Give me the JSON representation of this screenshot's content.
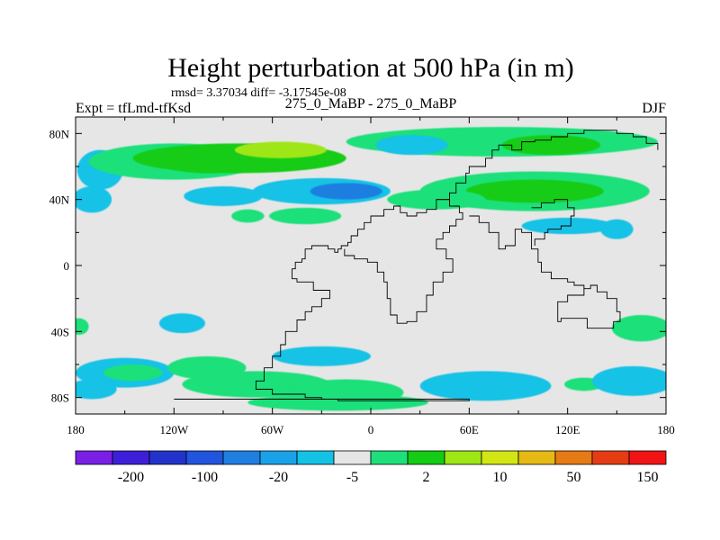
{
  "chart_data": {
    "type": "heatmap",
    "title": "Height perturbation at 500 hPa (in m)",
    "subtitle": "rmsd= 3.37034 diff= -3.17545e-08",
    "left_label": "Expt = tfLmd-tfKsd",
    "center_label": "275_0_MaBP - 275_0_MaBP",
    "right_label": "DJF",
    "x_range": [
      -180,
      180
    ],
    "y_range": [
      -90,
      90
    ],
    "x_ticks": [
      {
        "value": -180,
        "label": "180"
      },
      {
        "value": -120,
        "label": "120W"
      },
      {
        "value": -60,
        "label": "60W"
      },
      {
        "value": 0,
        "label": "0"
      },
      {
        "value": 60,
        "label": "60E"
      },
      {
        "value": 120,
        "label": "120E"
      },
      {
        "value": 180,
        "label": "180"
      }
    ],
    "y_ticks": [
      {
        "value": 80,
        "label": "80N"
      },
      {
        "value": 40,
        "label": "40N"
      },
      {
        "value": 0,
        "label": "0"
      },
      {
        "value": -40,
        "label": "40S"
      },
      {
        "value": -80,
        "label": "80S"
      }
    ],
    "colorbar": {
      "colors": [
        "#7a1fe6",
        "#3d1fd9",
        "#2233cc",
        "#2255dd",
        "#1f7fe0",
        "#1aa2e8",
        "#14c2e6",
        "#e6e6e6",
        "#1ee07a",
        "#14cc14",
        "#9ee614",
        "#d2e614",
        "#e6b914",
        "#e67a14",
        "#e63c14",
        "#f01414"
      ],
      "labels": [
        {
          "between": 1,
          "text": "-200"
        },
        {
          "between": 3,
          "text": "-100"
        },
        {
          "between": 5,
          "text": "-20"
        },
        {
          "between": 7,
          "text": "-5"
        },
        {
          "between": 9,
          "text": "2"
        },
        {
          "between": 11,
          "text": "10"
        },
        {
          "between": 13,
          "text": "50"
        },
        {
          "between": 15,
          "text": "150"
        }
      ]
    },
    "fields": [
      {
        "lon": -165,
        "lat": 58,
        "rlon": 14,
        "rlat": 12,
        "level": 6
      },
      {
        "lon": -120,
        "lat": 63,
        "rlon": 52,
        "rlat": 11,
        "level": 8
      },
      {
        "lon": -100,
        "lat": 63,
        "rlon": 28,
        "rlat": 7,
        "level": 9
      },
      {
        "lon": -80,
        "lat": 65,
        "rlon": 65,
        "rlat": 9,
        "level": 9
      },
      {
        "lon": -55,
        "lat": 70,
        "rlon": 28,
        "rlat": 5,
        "level": 10
      },
      {
        "lon": -30,
        "lat": 45,
        "rlon": 42,
        "rlat": 8,
        "level": 6
      },
      {
        "lon": -15,
        "lat": 45,
        "rlon": 22,
        "rlat": 5,
        "level": 4
      },
      {
        "lon": -90,
        "lat": 42,
        "rlon": 24,
        "rlat": 6,
        "level": 6
      },
      {
        "lon": -75,
        "lat": 30,
        "rlon": 10,
        "rlat": 4,
        "level": 8
      },
      {
        "lon": -40,
        "lat": 30,
        "rlon": 22,
        "rlat": 5,
        "level": 8
      },
      {
        "lon": 80,
        "lat": 75,
        "rlon": 95,
        "rlat": 9,
        "level": 8
      },
      {
        "lon": 110,
        "lat": 73,
        "rlon": 30,
        "rlat": 6,
        "level": 9
      },
      {
        "lon": 25,
        "lat": 73,
        "rlon": 22,
        "rlat": 6,
        "level": 6
      },
      {
        "lon": 100,
        "lat": 45,
        "rlon": 70,
        "rlat": 12,
        "level": 8
      },
      {
        "lon": 100,
        "lat": 45,
        "rlon": 42,
        "rlat": 7,
        "level": 9
      },
      {
        "lon": 40,
        "lat": 40,
        "rlon": 30,
        "rlat": 6,
        "level": 8
      },
      {
        "lon": 120,
        "lat": 24,
        "rlon": 28,
        "rlat": 5,
        "level": 6
      },
      {
        "lon": 150,
        "lat": 22,
        "rlon": 10,
        "rlat": 6,
        "level": 6
      },
      {
        "lon": -170,
        "lat": 40,
        "rlon": 12,
        "rlat": 8,
        "level": 6
      },
      {
        "lon": -115,
        "lat": -35,
        "rlon": 14,
        "rlat": 6,
        "level": 6
      },
      {
        "lon": -178,
        "lat": -37,
        "rlon": 6,
        "rlat": 5,
        "level": 8
      },
      {
        "lon": -150,
        "lat": -65,
        "rlon": 30,
        "rlat": 9,
        "level": 6
      },
      {
        "lon": -100,
        "lat": -62,
        "rlon": 24,
        "rlat": 7,
        "level": 8
      },
      {
        "lon": -145,
        "lat": -65,
        "rlon": 18,
        "rlat": 5,
        "level": 8
      },
      {
        "lon": -70,
        "lat": -72,
        "rlon": 45,
        "rlat": 8,
        "level": 8
      },
      {
        "lon": -30,
        "lat": -55,
        "rlon": 30,
        "rlat": 6,
        "level": 6
      },
      {
        "lon": -15,
        "lat": -77,
        "rlon": 35,
        "rlat": 8,
        "level": 8
      },
      {
        "lon": -20,
        "lat": -83,
        "rlon": 55,
        "rlat": 5,
        "level": 8
      },
      {
        "lon": 70,
        "lat": -73,
        "rlon": 40,
        "rlat": 9,
        "level": 6
      },
      {
        "lon": 130,
        "lat": -72,
        "rlon": 12,
        "rlat": 4,
        "level": 8
      },
      {
        "lon": 165,
        "lat": -38,
        "rlon": 18,
        "rlat": 8,
        "level": 8
      },
      {
        "lon": 160,
        "lat": -70,
        "rlon": 25,
        "rlat": 9,
        "level": 6
      },
      {
        "lon": -170,
        "lat": -75,
        "rlon": 15,
        "rlat": 6,
        "level": 6
      }
    ],
    "coastline": [
      [
        -120,
        -81
      ],
      [
        -30,
        -81
      ],
      [
        -20,
        -82
      ],
      [
        60,
        -82
      ],
      [
        60,
        -81
      ],
      [
        -10,
        -81
      ],
      [
        -30,
        -80
      ],
      [
        -40,
        -78
      ],
      [
        -60,
        -75
      ],
      [
        -70,
        -70
      ],
      [
        -65,
        -62
      ],
      [
        -60,
        -55
      ],
      [
        -55,
        -48
      ],
      [
        -52,
        -40
      ],
      [
        -45,
        -33
      ],
      [
        -40,
        -28
      ],
      [
        -36,
        -25
      ],
      [
        -30,
        -20
      ],
      [
        -25,
        -15
      ],
      [
        -35,
        -10
      ],
      [
        -45,
        -8
      ],
      [
        -48,
        -2
      ],
      [
        -46,
        2
      ],
      [
        -42,
        4
      ],
      [
        -40,
        10
      ],
      [
        -36,
        12
      ],
      [
        -30,
        12
      ],
      [
        -26,
        10
      ],
      [
        -22,
        8
      ],
      [
        -20,
        10
      ],
      [
        -18,
        12
      ],
      [
        -14,
        14
      ],
      [
        -12,
        18
      ],
      [
        -8,
        22
      ],
      [
        -4,
        26
      ],
      [
        0,
        30
      ],
      [
        8,
        34
      ],
      [
        14,
        36
      ],
      [
        18,
        32
      ],
      [
        22,
        30
      ],
      [
        28,
        32
      ],
      [
        34,
        34
      ],
      [
        40,
        40
      ],
      [
        48,
        44
      ],
      [
        52,
        50
      ],
      [
        58,
        56
      ],
      [
        60,
        60
      ],
      [
        70,
        65
      ],
      [
        74,
        70
      ],
      [
        78,
        73
      ],
      [
        86,
        70
      ],
      [
        92,
        75
      ],
      [
        100,
        76
      ],
      [
        110,
        78
      ],
      [
        120,
        80
      ],
      [
        130,
        82
      ],
      [
        140,
        82
      ],
      [
        150,
        80
      ],
      [
        160,
        78
      ],
      [
        168,
        74
      ],
      [
        175,
        70
      ]
    ],
    "coastline2": [
      [
        40,
        40
      ],
      [
        48,
        36
      ],
      [
        54,
        32
      ],
      [
        56,
        28
      ],
      [
        52,
        24
      ],
      [
        48,
        20
      ],
      [
        44,
        16
      ],
      [
        40,
        10
      ],
      [
        46,
        4
      ],
      [
        50,
        0
      ],
      [
        50,
        -4
      ],
      [
        44,
        -10
      ],
      [
        38,
        -18
      ],
      [
        34,
        -28
      ],
      [
        28,
        -34
      ],
      [
        22,
        -35
      ],
      [
        16,
        -30
      ],
      [
        12,
        -20
      ],
      [
        10,
        -10
      ],
      [
        8,
        -4
      ],
      [
        4,
        2
      ],
      [
        -2,
        4
      ],
      [
        -10,
        6
      ],
      [
        -16,
        10
      ]
    ],
    "coastline3": [
      [
        60,
        30
      ],
      [
        66,
        26
      ],
      [
        72,
        20
      ],
      [
        78,
        10
      ],
      [
        82,
        12
      ],
      [
        88,
        22
      ],
      [
        92,
        20
      ],
      [
        98,
        10
      ],
      [
        102,
        2
      ],
      [
        104,
        -4
      ],
      [
        110,
        -8
      ],
      [
        116,
        -8
      ],
      [
        120,
        -10
      ],
      [
        124,
        -12
      ],
      [
        130,
        -14
      ],
      [
        134,
        -12
      ],
      [
        138,
        -16
      ],
      [
        144,
        -20
      ],
      [
        150,
        -28
      ],
      [
        152,
        -34
      ],
      [
        148,
        -38
      ],
      [
        140,
        -38
      ],
      [
        132,
        -32
      ],
      [
        124,
        -32
      ],
      [
        116,
        -34
      ],
      [
        114,
        -28
      ],
      [
        114,
        -22
      ],
      [
        120,
        -18
      ],
      [
        130,
        -14
      ]
    ],
    "coastline4": [
      [
        98,
        35
      ],
      [
        104,
        38
      ],
      [
        112,
        40
      ],
      [
        120,
        35
      ],
      [
        124,
        30
      ],
      [
        122,
        24
      ],
      [
        116,
        22
      ],
      [
        108,
        20
      ],
      [
        106,
        16
      ],
      [
        100,
        12
      ]
    ]
  }
}
